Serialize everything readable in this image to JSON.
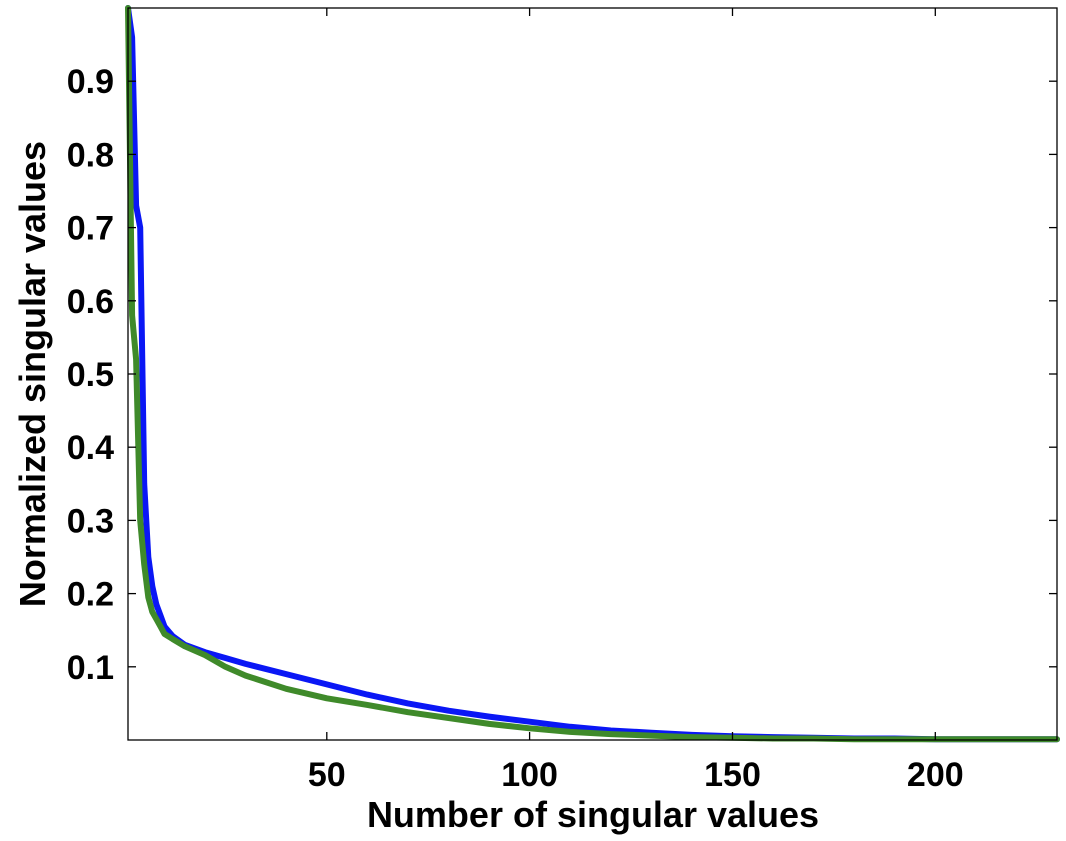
{
  "chart_data": {
    "type": "line",
    "title": "",
    "xlabel": "Number of singular values",
    "ylabel": "Normalized singular values",
    "xlim": [
      1,
      230
    ],
    "ylim": [
      0,
      1
    ],
    "xticks": [
      50,
      100,
      150,
      200
    ],
    "xtick_labels": [
      "50",
      "100",
      "150",
      "200"
    ],
    "yticks": [
      0.1,
      0.2,
      0.3,
      0.4,
      0.5,
      0.6,
      0.7,
      0.8,
      0.9
    ],
    "ytick_labels": [
      "0.1",
      "0.2",
      "0.3",
      "0.4",
      "0.5",
      "0.6",
      "0.7",
      "0.8",
      "0.9"
    ],
    "grid": false,
    "legend": "none",
    "series": [
      {
        "color": "#0a17f5",
        "x": [
          1,
          2,
          3,
          4,
          5,
          6,
          7,
          8,
          9,
          10,
          12,
          15,
          20,
          25,
          30,
          40,
          50,
          60,
          70,
          80,
          90,
          100,
          110,
          120,
          130,
          140,
          150,
          160,
          170,
          180,
          190,
          200,
          210,
          220,
          230
        ],
        "y": [
          1.0,
          0.96,
          0.73,
          0.7,
          0.35,
          0.25,
          0.21,
          0.185,
          0.17,
          0.155,
          0.142,
          0.13,
          0.12,
          0.112,
          0.104,
          0.09,
          0.076,
          0.062,
          0.05,
          0.04,
          0.032,
          0.025,
          0.018,
          0.013,
          0.01,
          0.007,
          0.005,
          0.004,
          0.003,
          0.002,
          0.002,
          0.001,
          0.001,
          0.001,
          0.001
        ]
      },
      {
        "color": "#3f8a2a",
        "x": [
          1,
          2,
          3,
          4,
          5,
          6,
          7,
          8,
          9,
          10,
          12,
          15,
          20,
          25,
          30,
          40,
          50,
          60,
          70,
          80,
          90,
          100,
          110,
          120,
          130,
          140,
          150,
          160,
          170,
          180,
          190,
          200,
          210,
          220,
          230
        ],
        "y": [
          1.0,
          0.58,
          0.52,
          0.3,
          0.24,
          0.195,
          0.175,
          0.165,
          0.155,
          0.145,
          0.138,
          0.128,
          0.116,
          0.1,
          0.088,
          0.07,
          0.057,
          0.048,
          0.038,
          0.03,
          0.022,
          0.016,
          0.011,
          0.008,
          0.006,
          0.004,
          0.003,
          0.002,
          0.002,
          0.001,
          0.001,
          0.001,
          0.001,
          0.001,
          0.001
        ]
      }
    ]
  }
}
